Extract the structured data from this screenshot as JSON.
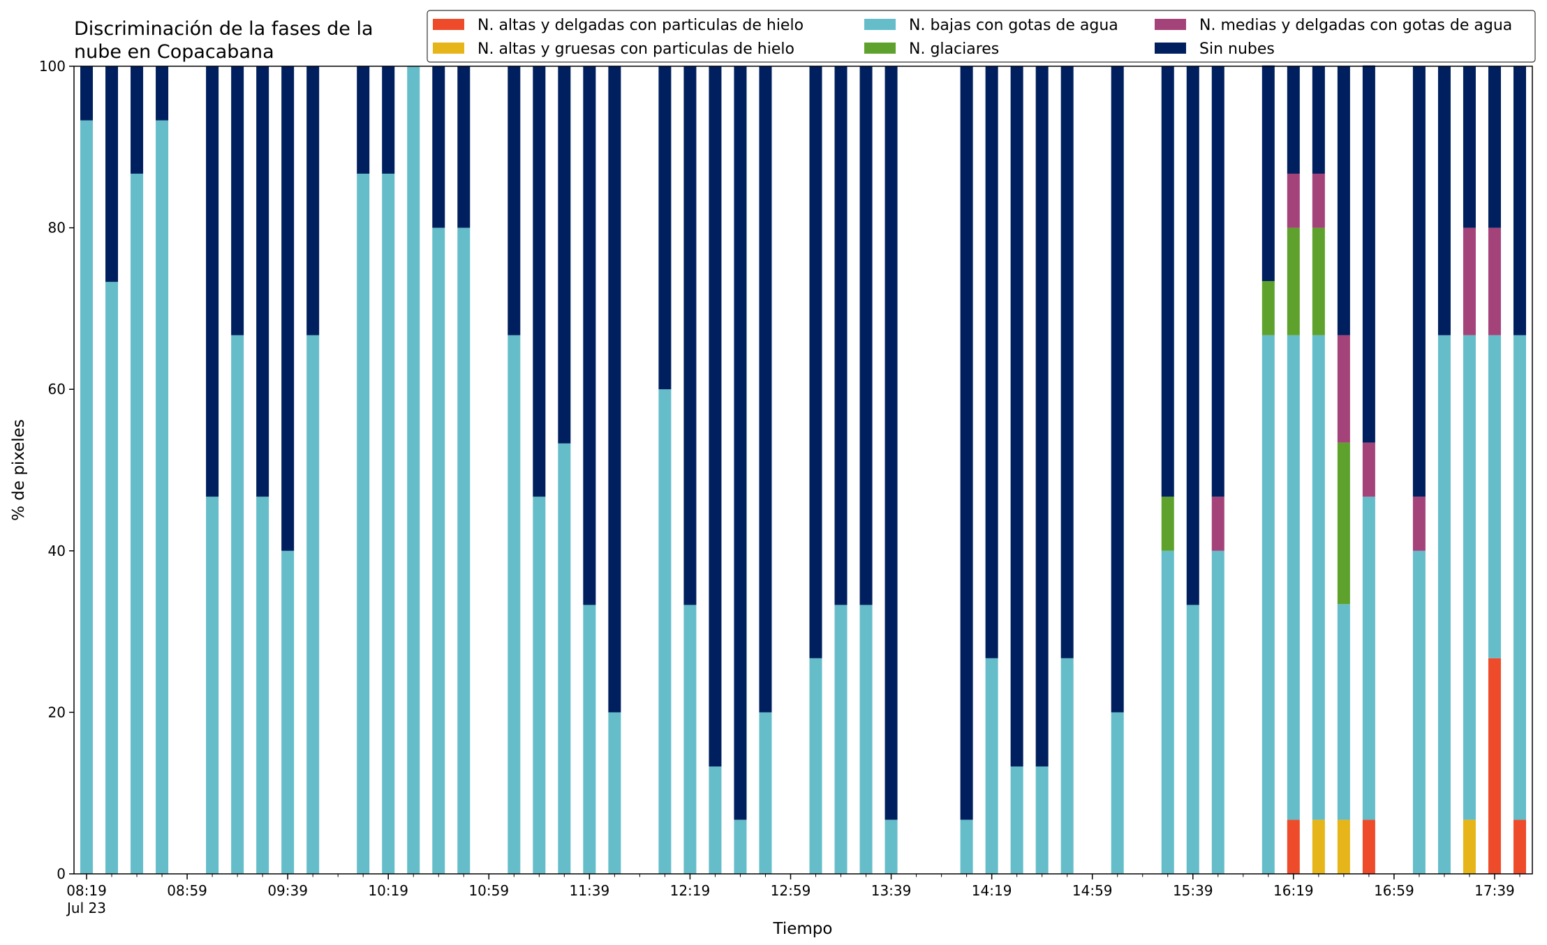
{
  "chart_data": {
    "type": "bar",
    "stacked": true,
    "title": [
      "Discriminación de la fases de la",
      "nube en Copacabana"
    ],
    "xlabel": "Tiempo",
    "ylabel": "% de pixeles",
    "ylim": [
      0,
      100
    ],
    "yticks": [
      0,
      20,
      40,
      60,
      80,
      100
    ],
    "xlim": [
      "08:14",
      "17:54"
    ],
    "x_step_minutes": 10,
    "x_major_ticks": [
      {
        "at": "08:19",
        "label": "08:19",
        "sublabel": "Jul 23"
      },
      {
        "at": "08:59",
        "label": "08:59"
      },
      {
        "at": "09:39",
        "label": "09:39"
      },
      {
        "at": "10:19",
        "label": "10:19"
      },
      {
        "at": "10:59",
        "label": "10:59"
      },
      {
        "at": "11:39",
        "label": "11:39"
      },
      {
        "at": "12:19",
        "label": "12:19"
      },
      {
        "at": "12:59",
        "label": "12:59"
      },
      {
        "at": "13:39",
        "label": "13:39"
      },
      {
        "at": "14:19",
        "label": "14:19"
      },
      {
        "at": "14:59",
        "label": "14:59"
      },
      {
        "at": "15:39",
        "label": "15:39"
      },
      {
        "at": "16:19",
        "label": "16:19"
      },
      {
        "at": "16:59",
        "label": "16:59"
      },
      {
        "at": "17:39",
        "label": "17:39"
      }
    ],
    "legend_placement": "top-right",
    "legend_columns": 3,
    "series": [
      {
        "name": "N. altas y delgadas con particulas de hielo",
        "color": "#ee4b2b"
      },
      {
        "name": "N. altas y gruesas con particulas de hielo",
        "color": "#e6b51a"
      },
      {
        "name": "N. bajas con gotas de agua",
        "color": "#65bdc9"
      },
      {
        "name": "N. glaciares",
        "color": "#5ea22d"
      },
      {
        "name": "N. medias y delgadas con gotas de agua",
        "color": "#a4437a"
      },
      {
        "name": "Sin nubes",
        "color": "#001f5e"
      }
    ],
    "stack_order": [
      "N. altas y delgadas con particulas de hielo",
      "N. altas y gruesas con particulas de hielo",
      "N. bajas con gotas de agua",
      "N. glaciares",
      "N. medias y delgadas con gotas de agua",
      "Sin nubes"
    ],
    "bars": [
      {
        "time": "08:19",
        "values": [
          0,
          0,
          93.3,
          0,
          0,
          6.7
        ]
      },
      {
        "time": "08:29",
        "values": [
          0,
          0,
          73.3,
          0,
          0,
          26.7
        ]
      },
      {
        "time": "08:39",
        "values": [
          0,
          0,
          86.7,
          0,
          0,
          13.3
        ]
      },
      {
        "time": "08:49",
        "values": [
          0,
          0,
          93.3,
          0,
          0,
          6.7
        ]
      },
      {
        "time": "09:09",
        "values": [
          0,
          0,
          46.7,
          0,
          0,
          53.3
        ]
      },
      {
        "time": "09:19",
        "values": [
          0,
          0,
          66.7,
          0,
          0,
          33.3
        ]
      },
      {
        "time": "09:29",
        "values": [
          0,
          0,
          46.7,
          0,
          0,
          53.3
        ]
      },
      {
        "time": "09:39",
        "values": [
          0,
          0,
          40,
          0,
          0,
          60
        ]
      },
      {
        "time": "09:49",
        "values": [
          0,
          0,
          66.7,
          0,
          0,
          33.3
        ]
      },
      {
        "time": "10:09",
        "values": [
          0,
          0,
          86.7,
          0,
          0,
          13.3
        ]
      },
      {
        "time": "10:19",
        "values": [
          0,
          0,
          86.7,
          0,
          0,
          13.3
        ]
      },
      {
        "time": "10:29",
        "values": [
          0,
          0,
          100,
          0,
          0,
          0
        ]
      },
      {
        "time": "10:39",
        "values": [
          0,
          0,
          80,
          0,
          0,
          20
        ]
      },
      {
        "time": "10:49",
        "values": [
          0,
          0,
          80,
          0,
          0,
          20
        ]
      },
      {
        "time": "11:09",
        "values": [
          0,
          0,
          66.7,
          0,
          0,
          33.3
        ]
      },
      {
        "time": "11:19",
        "values": [
          0,
          0,
          46.7,
          0,
          0,
          53.3
        ]
      },
      {
        "time": "11:29",
        "values": [
          0,
          0,
          53.3,
          0,
          0,
          46.7
        ]
      },
      {
        "time": "11:39",
        "values": [
          0,
          0,
          33.3,
          0,
          0,
          66.7
        ]
      },
      {
        "time": "11:49",
        "values": [
          0,
          0,
          20,
          0,
          0,
          80
        ]
      },
      {
        "time": "12:09",
        "values": [
          0,
          0,
          60,
          0,
          0,
          40
        ]
      },
      {
        "time": "12:19",
        "values": [
          0,
          0,
          33.3,
          0,
          0,
          66.7
        ]
      },
      {
        "time": "12:29",
        "values": [
          0,
          0,
          13.3,
          0,
          0,
          86.7
        ]
      },
      {
        "time": "12:39",
        "values": [
          0,
          0,
          6.7,
          0,
          0,
          93.3
        ]
      },
      {
        "time": "12:49",
        "values": [
          0,
          0,
          20,
          0,
          0,
          80
        ]
      },
      {
        "time": "13:09",
        "values": [
          0,
          0,
          26.7,
          0,
          0,
          73.3
        ]
      },
      {
        "time": "13:19",
        "values": [
          0,
          0,
          33.3,
          0,
          0,
          66.7
        ]
      },
      {
        "time": "13:29",
        "values": [
          0,
          0,
          33.3,
          0,
          0,
          66.7
        ]
      },
      {
        "time": "13:39",
        "values": [
          0,
          0,
          6.7,
          0,
          0,
          93.3
        ]
      },
      {
        "time": "14:09",
        "values": [
          0,
          0,
          6.7,
          0,
          0,
          93.3
        ]
      },
      {
        "time": "14:19",
        "values": [
          0,
          0,
          26.7,
          0,
          0,
          73.3
        ]
      },
      {
        "time": "14:29",
        "values": [
          0,
          0,
          13.3,
          0,
          0,
          86.7
        ]
      },
      {
        "time": "14:39",
        "values": [
          0,
          0,
          13.3,
          0,
          0,
          86.7
        ]
      },
      {
        "time": "14:49",
        "values": [
          0,
          0,
          26.7,
          0,
          0,
          73.3
        ]
      },
      {
        "time": "15:09",
        "values": [
          0,
          0,
          20,
          0,
          0,
          80
        ]
      },
      {
        "time": "15:29",
        "values": [
          0,
          0,
          40,
          6.7,
          0,
          53.3
        ]
      },
      {
        "time": "15:39",
        "values": [
          0,
          0,
          33.3,
          0,
          0,
          66.7
        ]
      },
      {
        "time": "15:49",
        "values": [
          0,
          0,
          40,
          0,
          6.7,
          53.3
        ]
      },
      {
        "time": "16:09",
        "values": [
          0,
          0,
          66.7,
          6.7,
          0,
          26.7
        ]
      },
      {
        "time": "16:19",
        "values": [
          6.7,
          0,
          60,
          13.3,
          6.7,
          13.3
        ]
      },
      {
        "time": "16:29",
        "values": [
          0,
          6.7,
          60,
          13.3,
          6.7,
          13.3
        ]
      },
      {
        "time": "16:39",
        "values": [
          0,
          6.7,
          26.7,
          20,
          13.3,
          33.3
        ]
      },
      {
        "time": "16:49",
        "values": [
          6.7,
          0,
          40,
          0,
          6.7,
          46.7
        ]
      },
      {
        "time": "17:09",
        "values": [
          0,
          0,
          40,
          0,
          6.7,
          53.3
        ]
      },
      {
        "time": "17:19",
        "values": [
          0,
          0,
          66.7,
          0,
          0,
          33.3
        ]
      },
      {
        "time": "17:29",
        "values": [
          0,
          6.7,
          60,
          0,
          13.3,
          20
        ]
      },
      {
        "time": "17:39",
        "values": [
          26.7,
          0,
          40,
          0,
          13.3,
          20
        ]
      },
      {
        "time": "17:49",
        "values": [
          6.7,
          0,
          60,
          0,
          0,
          33.3
        ]
      }
    ]
  }
}
